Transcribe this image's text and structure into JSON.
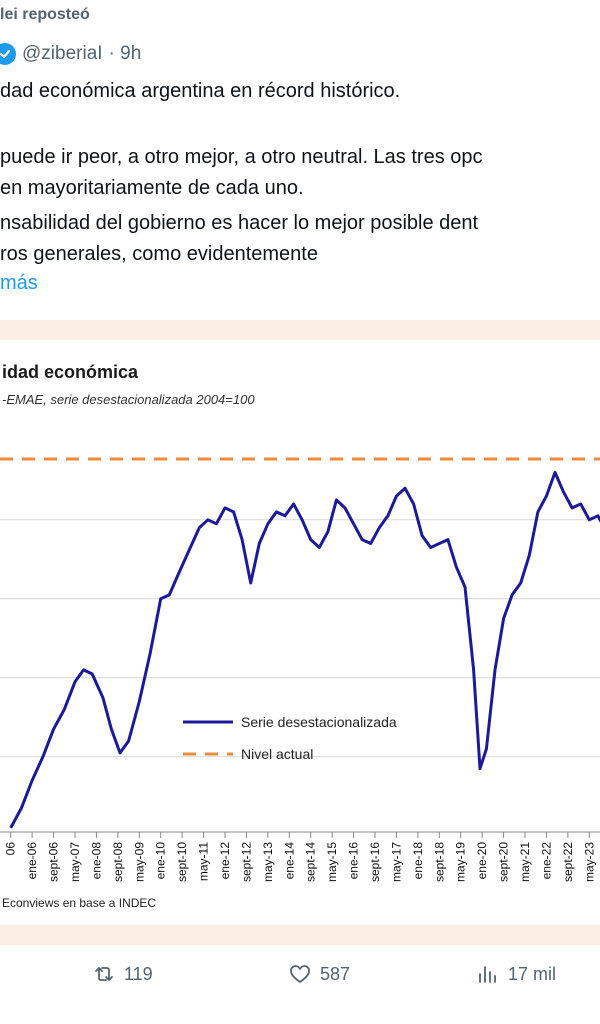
{
  "tweet": {
    "repost_label": "lei reposteó",
    "handle": "@ziberiaI",
    "time": "· 9h",
    "lines": [
      "dad económica argentina en récord histórico.",
      "puede ir peor, a otro mejor, a otro neutral. Las tres opc",
      "en mayoritariamente de cada uno.",
      "nsabilidad del gobierno es hacer lo mejor posible dent",
      "ros generales, como evidentemente"
    ],
    "show_more": "más"
  },
  "colors": {
    "series": "#1a1a9a",
    "reference": "#f08a3c",
    "card_bg": "#fdeee4",
    "accent": "#1d9bf0"
  },
  "chart_data": {
    "type": "line",
    "title": "idad económica",
    "subtitle": "-EMAE, serie desestacionalizada 2004=100",
    "source": "Econviews en base a INDEC",
    "x": [
      "06",
      "ene-06",
      "sept-06",
      "may-07",
      "ene-08",
      "sept-08",
      "may-09",
      "ene-10",
      "sept-10",
      "may-11",
      "ene-12",
      "sept-12",
      "may-13",
      "ene-14",
      "sept-14",
      "may-15",
      "ene-16",
      "sept-16",
      "may-17",
      "ene-18",
      "sept-18",
      "may-19",
      "ene-20",
      "sept-20",
      "may-21",
      "ene-22",
      "sept-22",
      "may-23"
    ],
    "series": [
      {
        "name": "Serie desestacionalizada",
        "values": [
          [
            0,
            111.0
          ],
          [
            0.5,
            113.5
          ],
          [
            1.0,
            117.0
          ],
          [
            1.5,
            120.0
          ],
          [
            2.0,
            123.5
          ],
          [
            2.5,
            126.0
          ],
          [
            3.0,
            129.5
          ],
          [
            3.4,
            131.0
          ],
          [
            3.8,
            130.5
          ],
          [
            4.3,
            127.5
          ],
          [
            4.7,
            123.5
          ],
          [
            5.1,
            120.5
          ],
          [
            5.5,
            122.0
          ],
          [
            6.0,
            127.0
          ],
          [
            6.5,
            133.0
          ],
          [
            7.0,
            140.0
          ],
          [
            7.4,
            140.5
          ],
          [
            7.8,
            143.0
          ],
          [
            8.3,
            146.0
          ],
          [
            8.8,
            149.0
          ],
          [
            9.2,
            150.0
          ],
          [
            9.6,
            149.5
          ],
          [
            10.0,
            151.5
          ],
          [
            10.4,
            151.0
          ],
          [
            10.8,
            147.5
          ],
          [
            11.2,
            142.0
          ],
          [
            11.6,
            147.0
          ],
          [
            12.0,
            149.5
          ],
          [
            12.4,
            151.0
          ],
          [
            12.8,
            150.5
          ],
          [
            13.2,
            152.0
          ],
          [
            13.6,
            150.0
          ],
          [
            14.0,
            147.5
          ],
          [
            14.4,
            146.5
          ],
          [
            14.8,
            148.5
          ],
          [
            15.2,
            152.5
          ],
          [
            15.6,
            151.5
          ],
          [
            16.0,
            149.5
          ],
          [
            16.4,
            147.5
          ],
          [
            16.8,
            147.0
          ],
          [
            17.2,
            149.0
          ],
          [
            17.6,
            150.5
          ],
          [
            18.0,
            153.0
          ],
          [
            18.4,
            154.0
          ],
          [
            18.8,
            152.0
          ],
          [
            19.2,
            148.0
          ],
          [
            19.6,
            146.5
          ],
          [
            20.0,
            147.0
          ],
          [
            20.4,
            147.5
          ],
          [
            20.8,
            144.0
          ],
          [
            21.2,
            141.5
          ],
          [
            21.6,
            131.0
          ],
          [
            21.9,
            118.5
          ],
          [
            22.2,
            121.0
          ],
          [
            22.6,
            131.0
          ],
          [
            23.0,
            137.5
          ],
          [
            23.4,
            140.5
          ],
          [
            23.8,
            142.0
          ],
          [
            24.2,
            145.5
          ],
          [
            24.6,
            151.0
          ],
          [
            25.0,
            153.0
          ],
          [
            25.4,
            156.0
          ],
          [
            25.8,
            153.5
          ],
          [
            26.2,
            151.5
          ],
          [
            26.6,
            152.0
          ],
          [
            27.0,
            150.0
          ],
          [
            27.4,
            150.5
          ],
          [
            27.8,
            148.5
          ],
          [
            28.2,
            146.0
          ],
          [
            28.6,
            141.0
          ]
        ]
      },
      {
        "name": "Nivel actual",
        "value": 157.7,
        "style": "dashed"
      }
    ],
    "ylim": [
      112,
      162
    ],
    "legend": "center",
    "grid": true
  },
  "actions": {
    "retweets": "119",
    "likes": "587",
    "views": "17 mil"
  }
}
